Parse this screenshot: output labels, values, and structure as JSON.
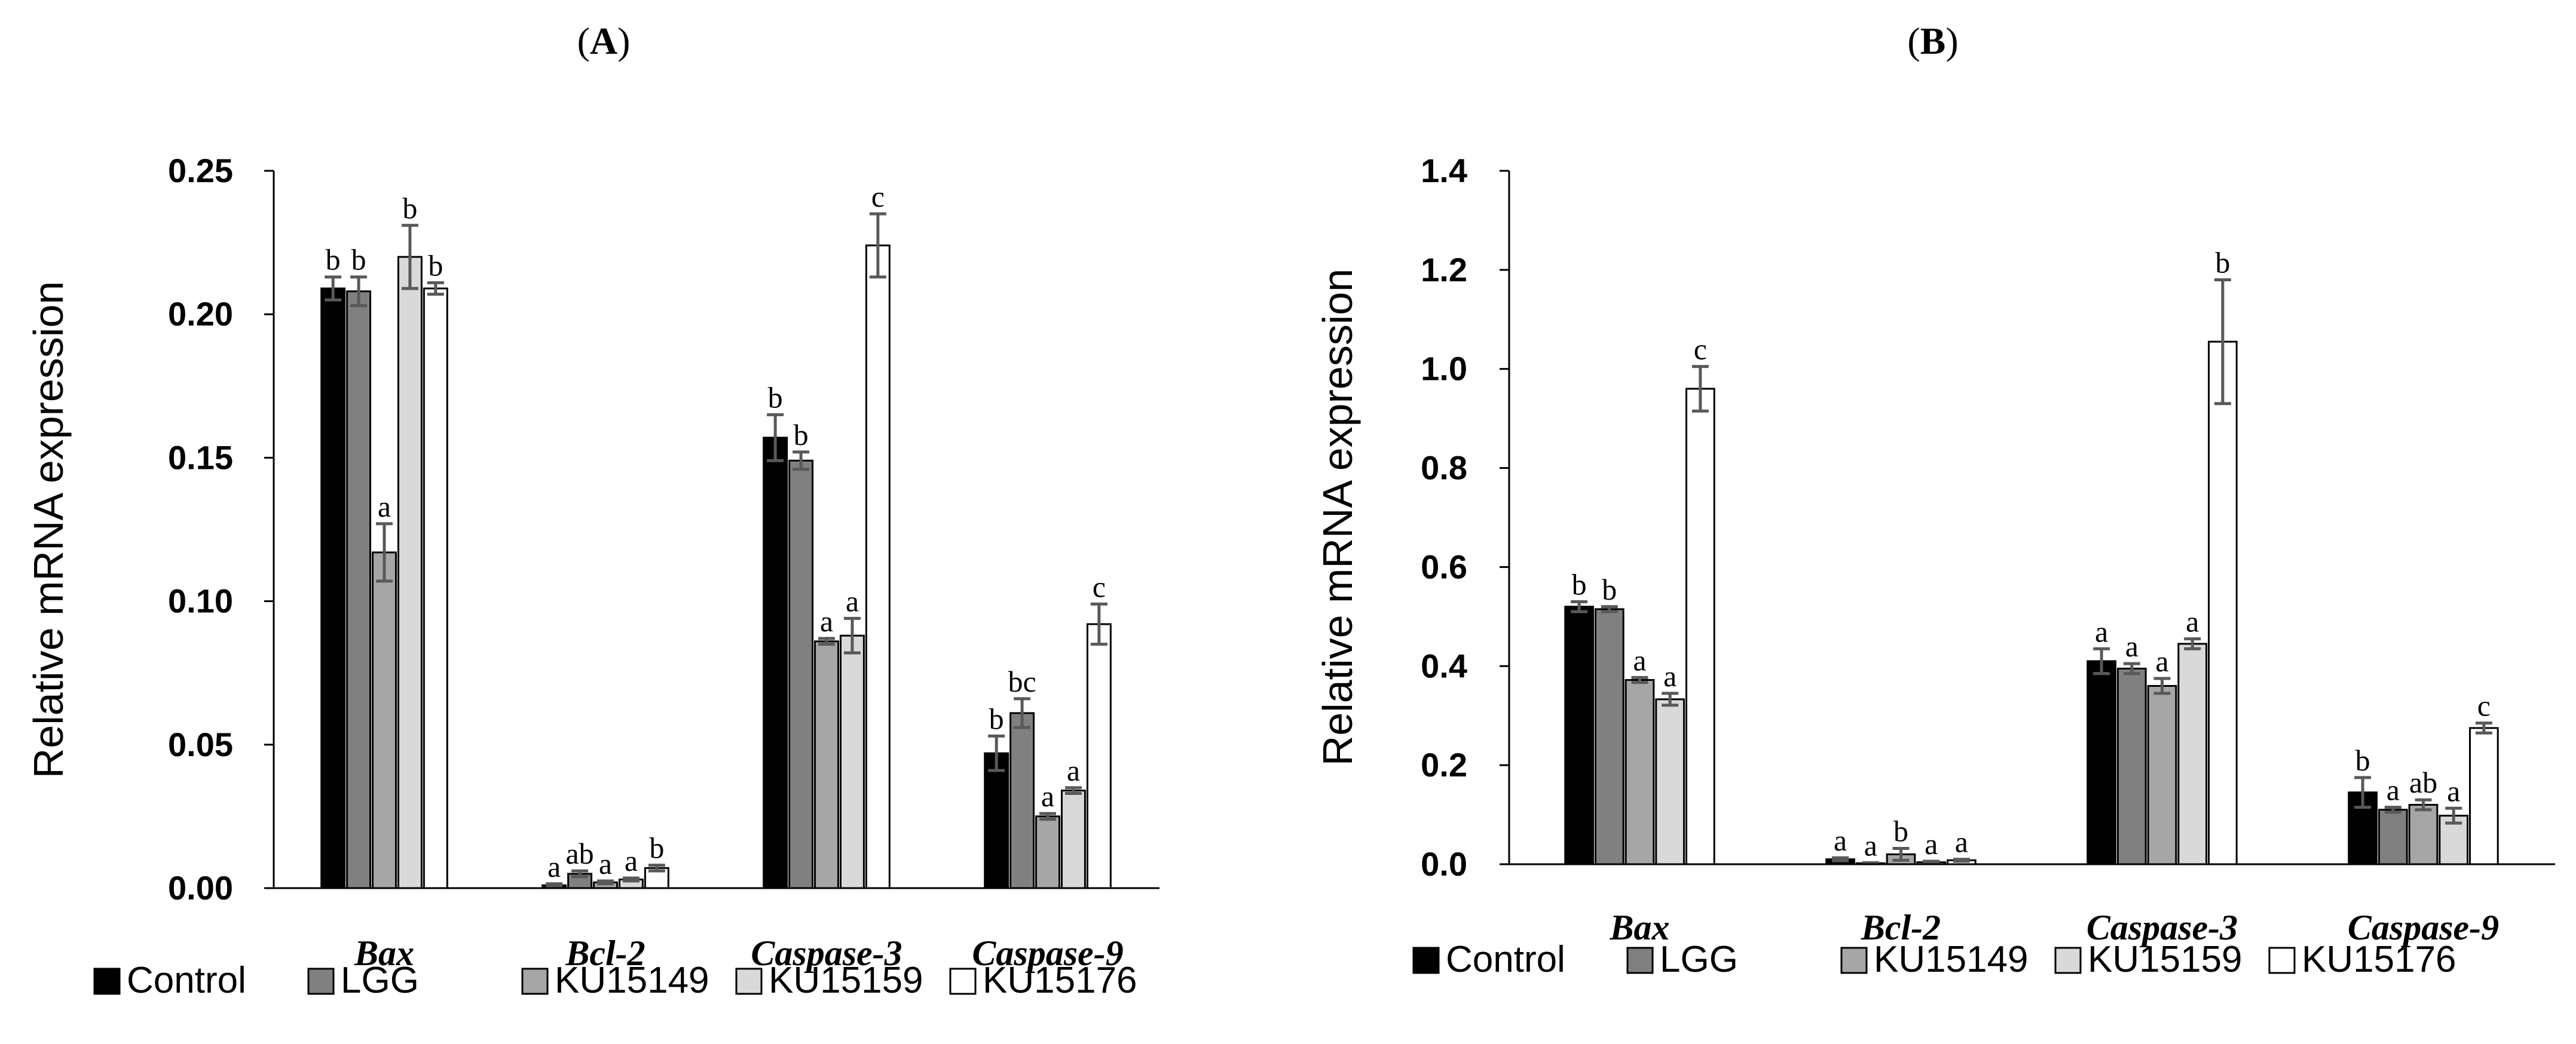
{
  "colors": {
    "Control": "#000000",
    "LGG": "#808080",
    "KU15149": "#a6a6a6",
    "KU15159": "#d9d9d9",
    "KU15176": "#ffffff",
    "axis": "#000000",
    "error": "#595959"
  },
  "chart_data": [
    {
      "panel": "A",
      "title": "A",
      "type": "bar",
      "ylabel": "Relative mRNA expression",
      "xlabel": "",
      "ylim": [
        0,
        0.25
      ],
      "yticks": [
        "0.00",
        "0.05",
        "0.10",
        "0.15",
        "0.20",
        "0.25"
      ],
      "categories": [
        "Bax",
        "Bcl-2",
        "Caspase-3",
        "Caspase-9"
      ],
      "series": [
        {
          "name": "Control",
          "values": [
            0.209,
            0.001,
            0.157,
            0.047
          ],
          "errors": [
            0.004,
            0.0005,
            0.008,
            0.006
          ],
          "sig": [
            "b",
            "a",
            "b",
            "b"
          ]
        },
        {
          "name": "LGG",
          "values": [
            0.208,
            0.005,
            0.149,
            0.061
          ],
          "errors": [
            0.005,
            0.001,
            0.003,
            0.005
          ],
          "sig": [
            "b",
            "ab",
            "b",
            "bc"
          ]
        },
        {
          "name": "KU15149",
          "values": [
            0.117,
            0.002,
            0.086,
            0.025
          ],
          "errors": [
            0.01,
            0.0005,
            0.001,
            0.001
          ],
          "sig": [
            "a",
            "a",
            "a",
            "a"
          ]
        },
        {
          "name": "KU15159",
          "values": [
            0.22,
            0.003,
            0.088,
            0.034
          ],
          "errors": [
            0.011,
            0.0005,
            0.006,
            0.001
          ],
          "sig": [
            "b",
            "a",
            "a",
            "a"
          ]
        },
        {
          "name": "KU15176",
          "values": [
            0.209,
            0.007,
            0.224,
            0.092
          ],
          "errors": [
            0.002,
            0.001,
            0.011,
            0.007
          ],
          "sig": [
            "b",
            "b",
            "c",
            "c"
          ]
        }
      ],
      "legend": [
        "Control",
        "LGG",
        "KU15149",
        "KU15159",
        "KU15176"
      ],
      "legend_position": "bottom"
    },
    {
      "panel": "B",
      "title": "B",
      "type": "bar",
      "ylabel": "Relative mRNA expression",
      "xlabel": "",
      "ylim": [
        0,
        1.4
      ],
      "yticks": [
        "0.0",
        "0.2",
        "0.4",
        "0.6",
        "0.8",
        "1.0",
        "1.2",
        "1.4"
      ],
      "categories": [
        "Bax",
        "Bcl-2",
        "Caspase-3",
        "Caspase-9"
      ],
      "series": [
        {
          "name": "Control",
          "values": [
            0.52,
            0.01,
            0.41,
            0.145
          ],
          "errors": [
            0.01,
            0.003,
            0.025,
            0.03
          ],
          "sig": [
            "b",
            "a",
            "a",
            "b"
          ]
        },
        {
          "name": "LGG",
          "values": [
            0.515,
            0.002,
            0.395,
            0.11
          ],
          "errors": [
            0.005,
            0.001,
            0.01,
            0.005
          ],
          "sig": [
            "b",
            "a",
            "a",
            "a"
          ]
        },
        {
          "name": "KU15149",
          "values": [
            0.372,
            0.02,
            0.36,
            0.12
          ],
          "errors": [
            0.005,
            0.012,
            0.015,
            0.01
          ],
          "sig": [
            "a",
            "b",
            "a",
            "ab"
          ]
        },
        {
          "name": "KU15159",
          "values": [
            0.333,
            0.004,
            0.445,
            0.098
          ],
          "errors": [
            0.012,
            0.002,
            0.01,
            0.015
          ],
          "sig": [
            "a",
            "a",
            "a",
            "a"
          ]
        },
        {
          "name": "KU15176",
          "values": [
            0.96,
            0.008,
            1.055,
            0.275
          ],
          "errors": [
            0.045,
            0.002,
            0.125,
            0.01
          ],
          "sig": [
            "c",
            "a",
            "b",
            "c"
          ]
        }
      ],
      "legend": [
        "Control",
        "LGG",
        "KU15149",
        "KU15159",
        "KU15176"
      ],
      "legend_position": "bottom"
    }
  ]
}
